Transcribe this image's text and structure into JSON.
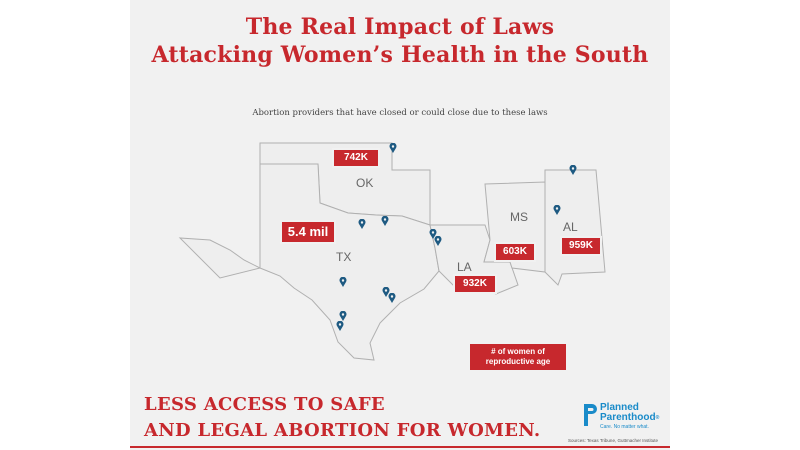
{
  "title_line1": "The Real Impact of Laws",
  "title_line2": "Attacking Women’s Health in the South",
  "subtitle": "Abortion providers that have closed or could close due to these laws",
  "states": [
    {
      "abbr": "OK",
      "women": "742K"
    },
    {
      "abbr": "TX",
      "women": "5.4 mil"
    },
    {
      "abbr": "LA",
      "women": "932K"
    },
    {
      "abbr": "MS",
      "women": "603K"
    },
    {
      "abbr": "AL",
      "women": "959K"
    }
  ],
  "marker_icon": "map-pin-icon",
  "legend_text": "# of women of reproductive age",
  "headline_line1": "LESS ACCESS TO SAFE",
  "headline_line2": "AND LEGAL ABORTION FOR WOMEN.",
  "logo": {
    "name_line1": "Planned",
    "name_line2": "Parenthood",
    "registered": "®",
    "tagline": "Care. No matter what."
  },
  "sources": "Sources: Texas Tribune, Guttmacher Institute",
  "colors": {
    "accent_red": "#c7282d",
    "pin_blue": "#1e5a82",
    "logo_blue": "#1a8bc9",
    "state_fill": "#eeeeee",
    "state_border": "#b0b0b0"
  }
}
